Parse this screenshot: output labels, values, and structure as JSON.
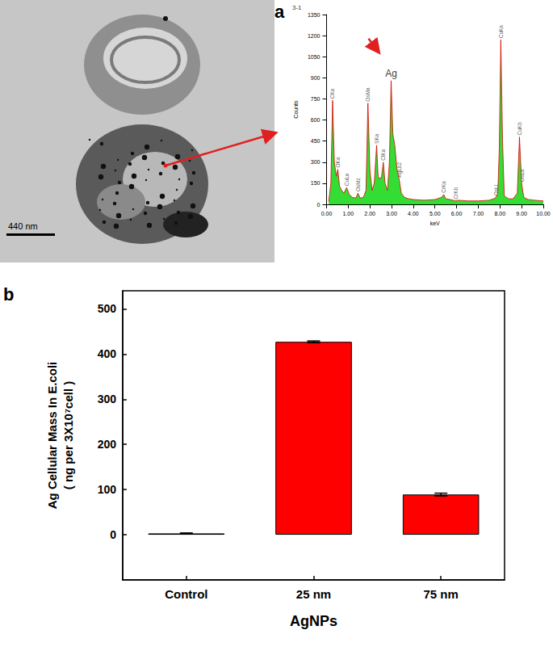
{
  "panel_labels": [
    "a",
    "b"
  ],
  "image": {
    "scale_bar": "440 nm"
  },
  "chart_data": [
    {
      "type": "line",
      "title": "3-1",
      "x_label": "keV",
      "y_label": "Counts",
      "x": [
        0.1,
        0.2,
        0.28,
        0.36,
        0.45,
        0.52,
        0.6,
        0.7,
        0.8,
        0.93,
        1.05,
        1.2,
        1.35,
        1.45,
        1.55,
        1.7,
        1.82,
        1.91,
        2.0,
        2.1,
        2.2,
        2.31,
        2.38,
        2.46,
        2.54,
        2.62,
        2.7,
        2.81,
        2.9,
        2.98,
        3.06,
        3.15,
        3.25,
        3.35,
        3.45,
        3.6,
        3.8,
        4.0,
        4.5,
        5.0,
        5.3,
        5.41,
        5.5,
        5.7,
        5.95,
        6.1,
        6.5,
        7.0,
        7.5,
        7.7,
        7.82,
        7.9,
        7.97,
        8.04,
        8.12,
        8.2,
        8.4,
        8.6,
        8.8,
        8.9,
        9.0,
        9.1,
        9.3,
        9.6,
        10.0
      ],
      "values": [
        20,
        150,
        740,
        300,
        200,
        250,
        130,
        100,
        80,
        120,
        70,
        50,
        45,
        80,
        45,
        50,
        100,
        720,
        250,
        100,
        150,
        420,
        200,
        180,
        200,
        300,
        150,
        100,
        300,
        880,
        500,
        420,
        250,
        180,
        80,
        50,
        40,
        35,
        30,
        35,
        50,
        70,
        40,
        35,
        25,
        30,
        25,
        25,
        30,
        40,
        50,
        80,
        400,
        1170,
        450,
        60,
        40,
        40,
        80,
        480,
        150,
        50,
        35,
        30,
        25
      ],
      "color": "#e00000",
      "xlim": [
        0,
        10
      ],
      "xticks": [
        {
          "value": 0,
          "label": "0.00"
        },
        {
          "value": 1,
          "label": "1.00"
        },
        {
          "value": 2,
          "label": "2.00"
        },
        {
          "value": 3,
          "label": "3.00"
        },
        {
          "value": 4,
          "label": "4.00"
        },
        {
          "value": 5,
          "label": "5.00"
        },
        {
          "value": 6,
          "label": "6.00"
        },
        {
          "value": 7,
          "label": "7.00"
        },
        {
          "value": 8,
          "label": "8.00"
        },
        {
          "value": 9,
          "label": "9.00"
        },
        {
          "value": 10,
          "label": "10.00"
        }
      ],
      "ylim": [
        0,
        1350
      ],
      "yticks": [
        0,
        150,
        300,
        450,
        600,
        750,
        900,
        1050,
        1200,
        1350
      ],
      "grid": false,
      "annotations": [
        {
          "text": "CKa",
          "x": 0.28,
          "y": 740
        },
        {
          "text": "OKa",
          "x": 0.52,
          "y": 250
        },
        {
          "text": "CuLa",
          "x": 0.93,
          "y": 120
        },
        {
          "text": "OsMz",
          "x": 1.45,
          "y": 80
        },
        {
          "text": "OsMa",
          "x": 1.91,
          "y": 720
        },
        {
          "text": "SKa",
          "x": 2.31,
          "y": 420
        },
        {
          "text": "ClKa",
          "x": 2.62,
          "y": 300
        },
        {
          "text": "AgLb2",
          "x": 3.35,
          "y": 180
        },
        {
          "text": "CrKa",
          "x": 5.41,
          "y": 70
        },
        {
          "text": "CrKb",
          "x": 5.95,
          "y": 25
        },
        {
          "text": "OsLl",
          "x": 7.82,
          "y": 50
        },
        {
          "text": "CuKa",
          "x": 8.04,
          "y": 1170
        },
        {
          "text": "CuKb",
          "x": 8.9,
          "y": 480
        },
        {
          "text": "OsLa",
          "x": 9.0,
          "y": 150
        }
      ],
      "highlight": {
        "text": "Ag",
        "x": 2.98,
        "y": 880
      }
    },
    {
      "type": "bar",
      "categories": [
        "Control",
        "25 nm",
        "75 nm"
      ],
      "values": [
        3,
        427,
        89
      ],
      "errors": [
        1,
        2,
        3
      ],
      "color": "#ff0000",
      "x_label": "AgNPs",
      "y_label": [
        "Ag Cellular Mass In E.coli",
        "( ng per 3X10⁷cell )"
      ],
      "ylim": [
        -100,
        540
      ],
      "yticks": [
        0,
        100,
        200,
        300,
        400,
        500
      ],
      "grid": false
    }
  ]
}
